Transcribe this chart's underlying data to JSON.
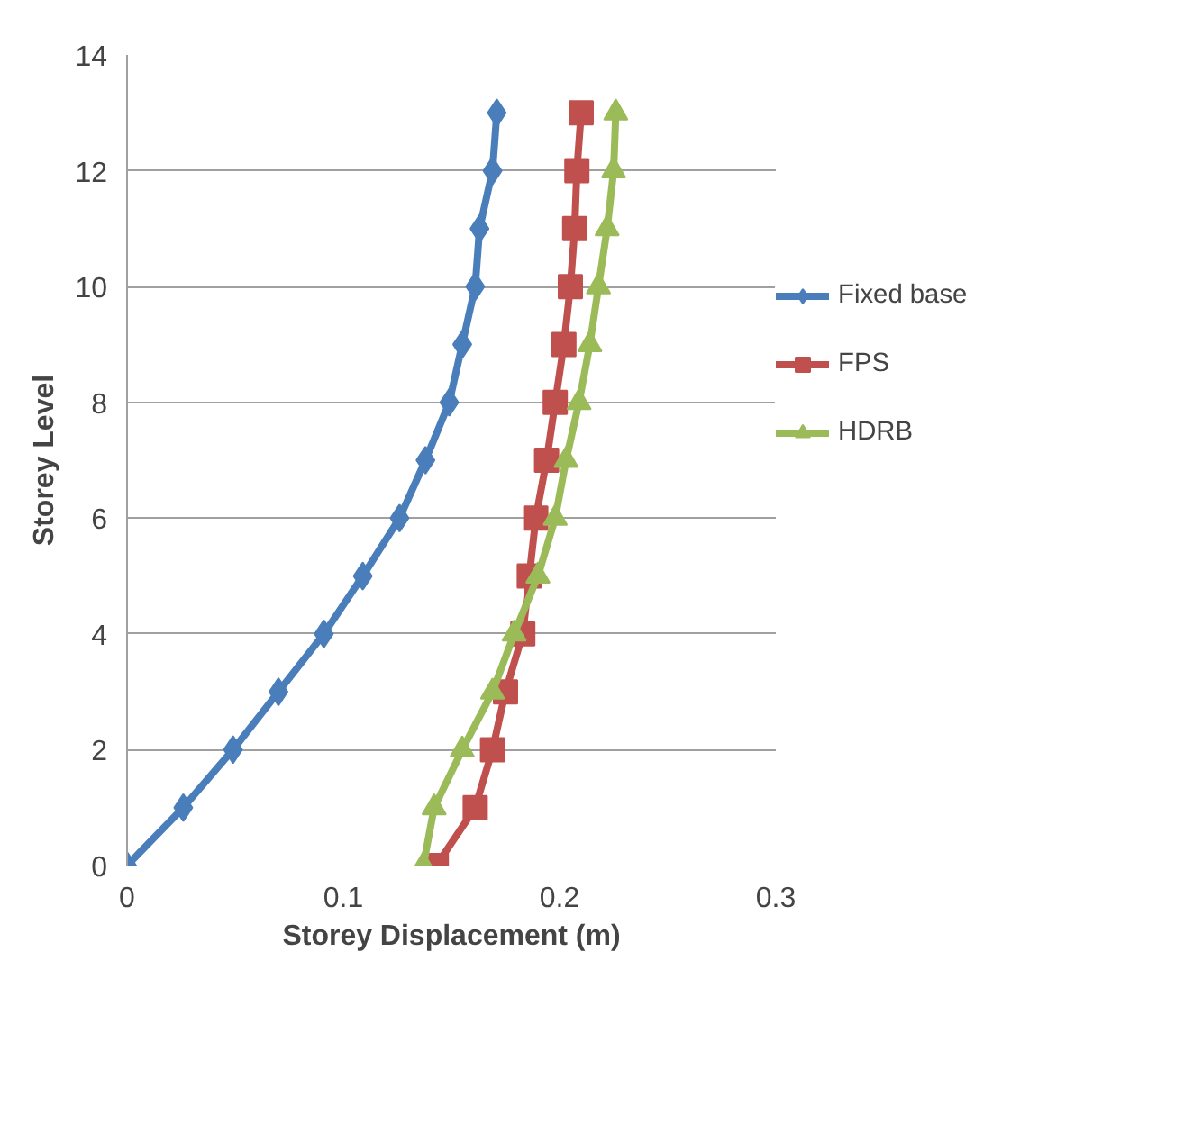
{
  "chart_data": {
    "type": "line",
    "xlabel": "Storey Displacement (m)",
    "ylabel": "Storey Level",
    "xlim": [
      0,
      0.3
    ],
    "xticks": [
      0,
      0.1,
      0.2,
      0.3
    ],
    "ylim": [
      0,
      14
    ],
    "yticks": [
      0,
      2,
      4,
      6,
      8,
      10,
      12,
      14
    ],
    "grid": "y",
    "legend": "right",
    "series": [
      {
        "name": "Fixed base",
        "color": "#4a7ebb",
        "marker": "diamond",
        "x": [
          0,
          0.026,
          0.049,
          0.07,
          0.091,
          0.109,
          0.126,
          0.138,
          0.149,
          0.155,
          0.161,
          0.163,
          0.169,
          0.171
        ],
        "values": [
          0,
          1,
          2,
          3,
          4,
          5,
          6,
          7,
          8,
          9,
          10,
          11,
          12,
          13
        ]
      },
      {
        "name": "FPS",
        "color": "#c0504d",
        "marker": "square",
        "x": [
          0.143,
          0.161,
          0.169,
          0.175,
          0.183,
          0.186,
          0.189,
          0.194,
          0.198,
          0.202,
          0.205,
          0.207,
          0.208,
          0.21
        ],
        "values": [
          0,
          1,
          2,
          3,
          4,
          5,
          6,
          7,
          8,
          9,
          10,
          11,
          12,
          13
        ]
      },
      {
        "name": "HDRB",
        "color": "#9bbb59",
        "marker": "triangle",
        "x": [
          0.137,
          0.142,
          0.155,
          0.169,
          0.179,
          0.19,
          0.198,
          0.203,
          0.209,
          0.214,
          0.218,
          0.222,
          0.225,
          0.226
        ],
        "values": [
          0,
          1,
          2,
          3,
          4,
          5,
          6,
          7,
          8,
          9,
          10,
          11,
          12,
          13
        ]
      }
    ]
  }
}
